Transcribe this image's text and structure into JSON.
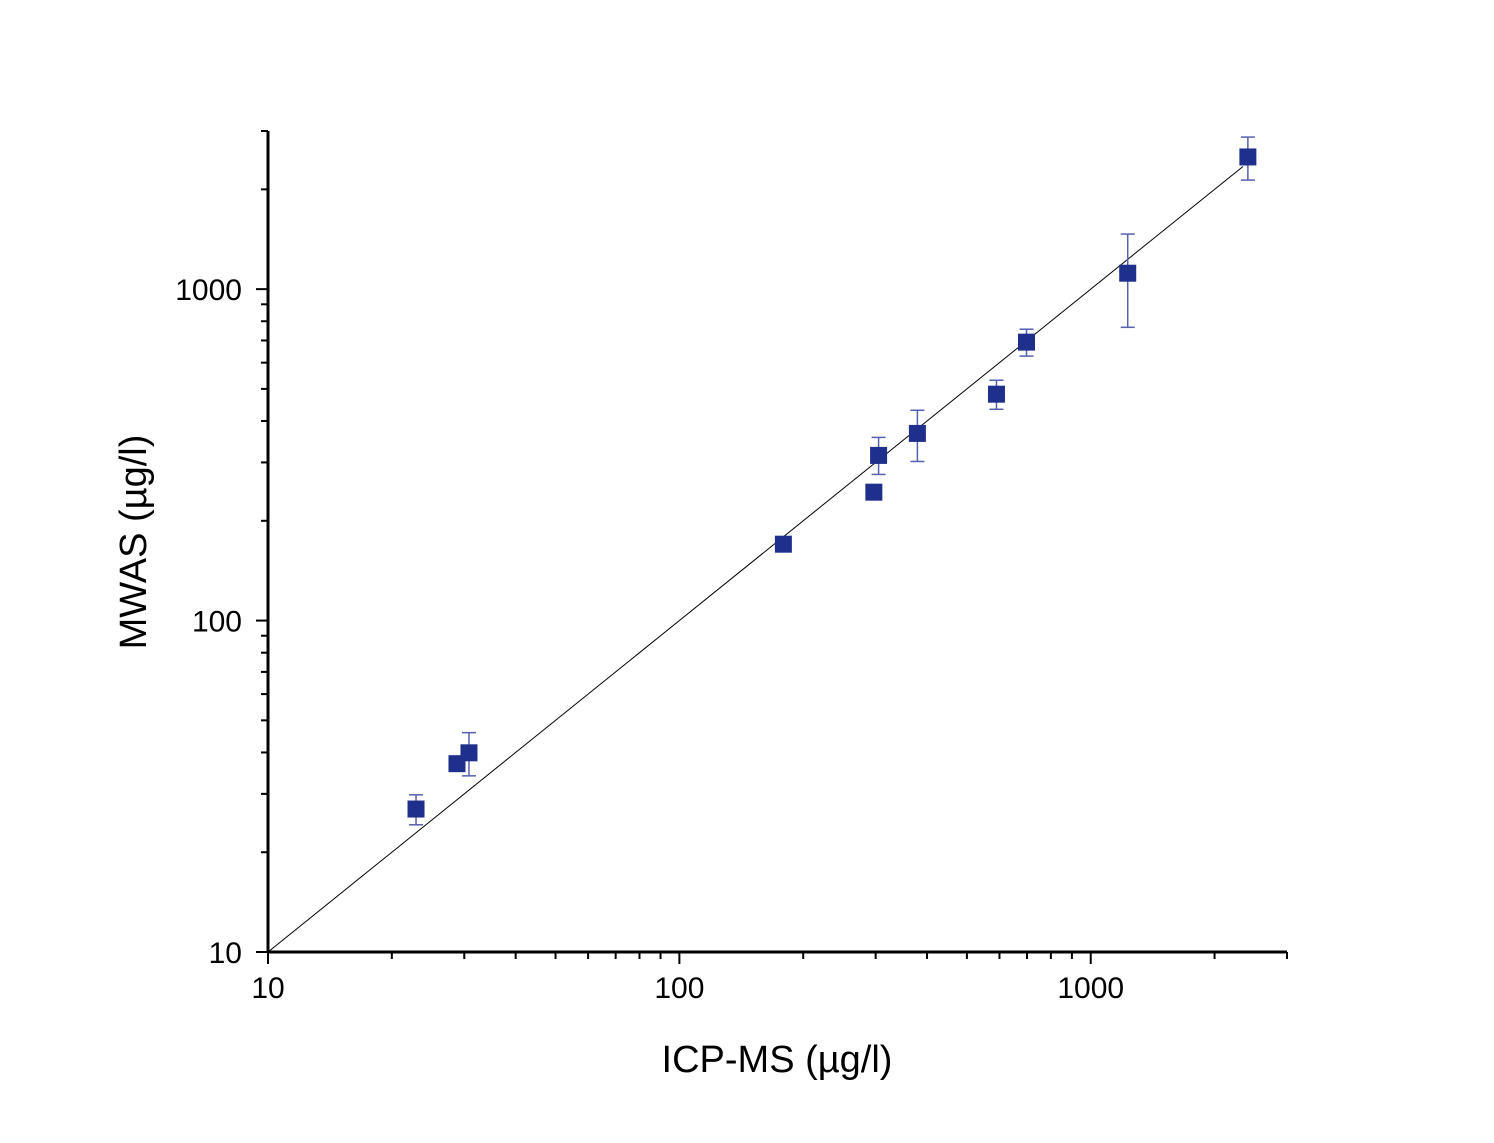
{
  "chart_data": {
    "type": "scatter",
    "xlabel": "ICP-MS (µg/l)",
    "ylabel": "MWAS (µg/l)",
    "xscale": "log",
    "yscale": "log",
    "xlim": [
      10,
      3000
    ],
    "ylim": [
      10,
      3000
    ],
    "xticks": [
      "10",
      "100",
      "1000"
    ],
    "yticks": [
      "10",
      "100",
      "1000"
    ],
    "grid": false,
    "marker_color": "#1f2f8c",
    "errorbar_color": "#5560b0",
    "points": [
      {
        "x": 22.9,
        "y": 27.0,
        "yerr_low": 24.2,
        "yerr_high": 29.8
      },
      {
        "x": 28.8,
        "y": 37.0,
        "yerr_low": 37.0,
        "yerr_high": 37.0
      },
      {
        "x": 30.8,
        "y": 39.9,
        "yerr_low": 34.0,
        "yerr_high": 45.9
      },
      {
        "x": 179,
        "y": 170,
        "yerr_low": 170,
        "yerr_high": 170
      },
      {
        "x": 297,
        "y": 244,
        "yerr_low": 244,
        "yerr_high": 244
      },
      {
        "x": 305,
        "y": 315,
        "yerr_low": 276,
        "yerr_high": 357
      },
      {
        "x": 379,
        "y": 367,
        "yerr_low": 302,
        "yerr_high": 431
      },
      {
        "x": 590,
        "y": 482,
        "yerr_low": 434,
        "yerr_high": 531
      },
      {
        "x": 698,
        "y": 692,
        "yerr_low": 628,
        "yerr_high": 757
      },
      {
        "x": 1230,
        "y": 1117,
        "yerr_low": 767,
        "yerr_high": 1466
      },
      {
        "x": 2410,
        "y": 2505,
        "yerr_low": 2133,
        "yerr_high": 2876
      }
    ],
    "reference_line": {
      "type": "y=x",
      "x_range": [
        10,
        2345
      ]
    }
  }
}
